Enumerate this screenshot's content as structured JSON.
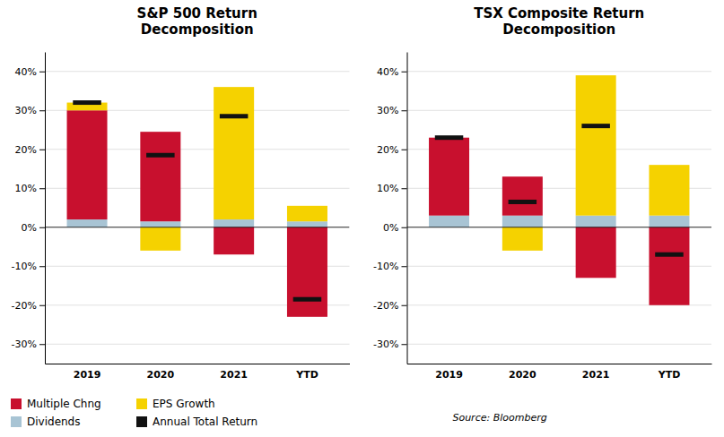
{
  "chart_data": [
    {
      "type": "bar",
      "title": "S&P 500 Return\nDecomposition",
      "categories": [
        "2019",
        "2020",
        "2021",
        "YTD"
      ],
      "series": [
        {
          "name": "Multiple Chng",
          "color": "#C8102E",
          "values": [
            28.0,
            23.0,
            -7.0,
            -23.0
          ]
        },
        {
          "name": "EPS Growth",
          "color": "#F5D200",
          "values": [
            2.0,
            -6.0,
            34.0,
            4.0
          ]
        },
        {
          "name": "Dividends",
          "color": "#A8C4D4",
          "values": [
            2.0,
            1.5,
            2.0,
            1.5
          ]
        },
        {
          "name": "Annual Total Return",
          "color": "#111111",
          "type": "scatter",
          "marker": "dash",
          "values": [
            32.0,
            18.5,
            28.5,
            -18.5
          ]
        }
      ],
      "ylim": [
        -35,
        45
      ],
      "yticks": [
        {
          "value": -30,
          "label": "-30%"
        },
        {
          "value": -20,
          "label": "-20%"
        },
        {
          "value": -10,
          "label": "-10%"
        },
        {
          "value": 0,
          "label": "0%"
        },
        {
          "value": 10,
          "label": "10%"
        },
        {
          "value": 20,
          "label": "20%"
        },
        {
          "value": 30,
          "label": "30%"
        },
        {
          "value": 40,
          "label": "40%"
        }
      ],
      "stacked": true,
      "grid": true,
      "legend": "lower left"
    },
    {
      "type": "bar",
      "title": "TSX Composite Return\nDecomposition",
      "categories": [
        "2019",
        "2020",
        "2021",
        "YTD"
      ],
      "series": [
        {
          "name": "Multiple Chng",
          "color": "#C8102E",
          "values": [
            20.0,
            10.0,
            -13.0,
            -20.0
          ]
        },
        {
          "name": "EPS Growth",
          "color": "#F5D200",
          "values": [
            0.0,
            -6.0,
            36.0,
            13.0
          ]
        },
        {
          "name": "Dividends",
          "color": "#A8C4D4",
          "values": [
            3.0,
            3.0,
            3.0,
            3.0
          ]
        },
        {
          "name": "Annual Total Return",
          "color": "#111111",
          "type": "scatter",
          "marker": "dash",
          "values": [
            23.0,
            6.5,
            26.0,
            -7.0
          ]
        }
      ],
      "ylim": [
        -35,
        45
      ],
      "yticks": [
        {
          "value": -30,
          "label": "-30%"
        },
        {
          "value": -20,
          "label": "-20%"
        },
        {
          "value": -10,
          "label": "-10%"
        },
        {
          "value": 0,
          "label": "0%"
        },
        {
          "value": 10,
          "label": "10%"
        },
        {
          "value": 20,
          "label": "20%"
        },
        {
          "value": 30,
          "label": "30%"
        },
        {
          "value": 40,
          "label": "40%"
        }
      ],
      "stacked": true,
      "grid": true,
      "annotations": [
        "Source: Bloomberg"
      ]
    }
  ]
}
